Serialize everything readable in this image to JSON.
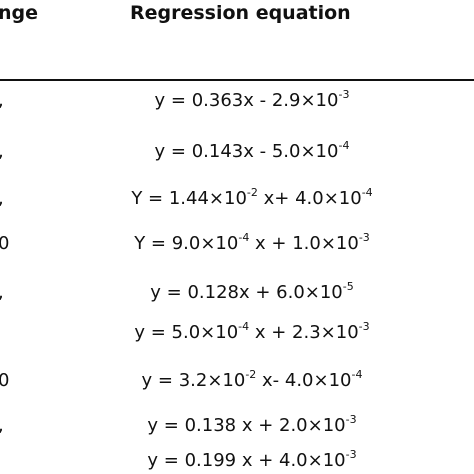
{
  "table": {
    "headers": {
      "left": "nge",
      "right": "Regression equation"
    },
    "rows": [
      {
        "left": ",",
        "eq": {
          "a": "y = 0.363x - 2.9×10",
          "a_exp": "-3",
          "b": "",
          "b_exp": ""
        }
      },
      {
        "left": ",",
        "eq": {
          "a": "y = 0.143x - 5.0×10",
          "a_exp": "-4",
          "b": "",
          "b_exp": ""
        }
      },
      {
        "left": ",",
        "eq": {
          "a": "Y = 1.44×10",
          "a_exp": "-2",
          "b": " x+ 4.0×10",
          "b_exp": "-4"
        }
      },
      {
        "left": "0",
        "eq": {
          "a": "Y = 9.0×10",
          "a_exp": "-4",
          "b": " x + 1.0×10",
          "b_exp": "-3"
        }
      },
      {
        "left": ",",
        "eq": {
          "a": "y = 0.128x + 6.0×10",
          "a_exp": "-5",
          "b": "",
          "b_exp": ""
        }
      },
      {
        "left": "",
        "eq": {
          "a": "y = 5.0×10",
          "a_exp": "-4",
          "b": " x + 2.3×10",
          "b_exp": "-3"
        }
      },
      {
        "left": "0",
        "eq": {
          "a": "y = 3.2×10",
          "a_exp": "-2",
          "b": " x- 4.0×10",
          "b_exp": "-4"
        }
      },
      {
        "left": ",",
        "eq": {
          "a": "y = 0.138 x + 2.0×10",
          "a_exp": "-3",
          "b": "",
          "b_exp": ""
        }
      },
      {
        "left": "",
        "eq": {
          "a": "y = 0.199 x + 4.0×10",
          "a_exp": "-3",
          "b": "",
          "b_exp": ""
        }
      }
    ]
  }
}
